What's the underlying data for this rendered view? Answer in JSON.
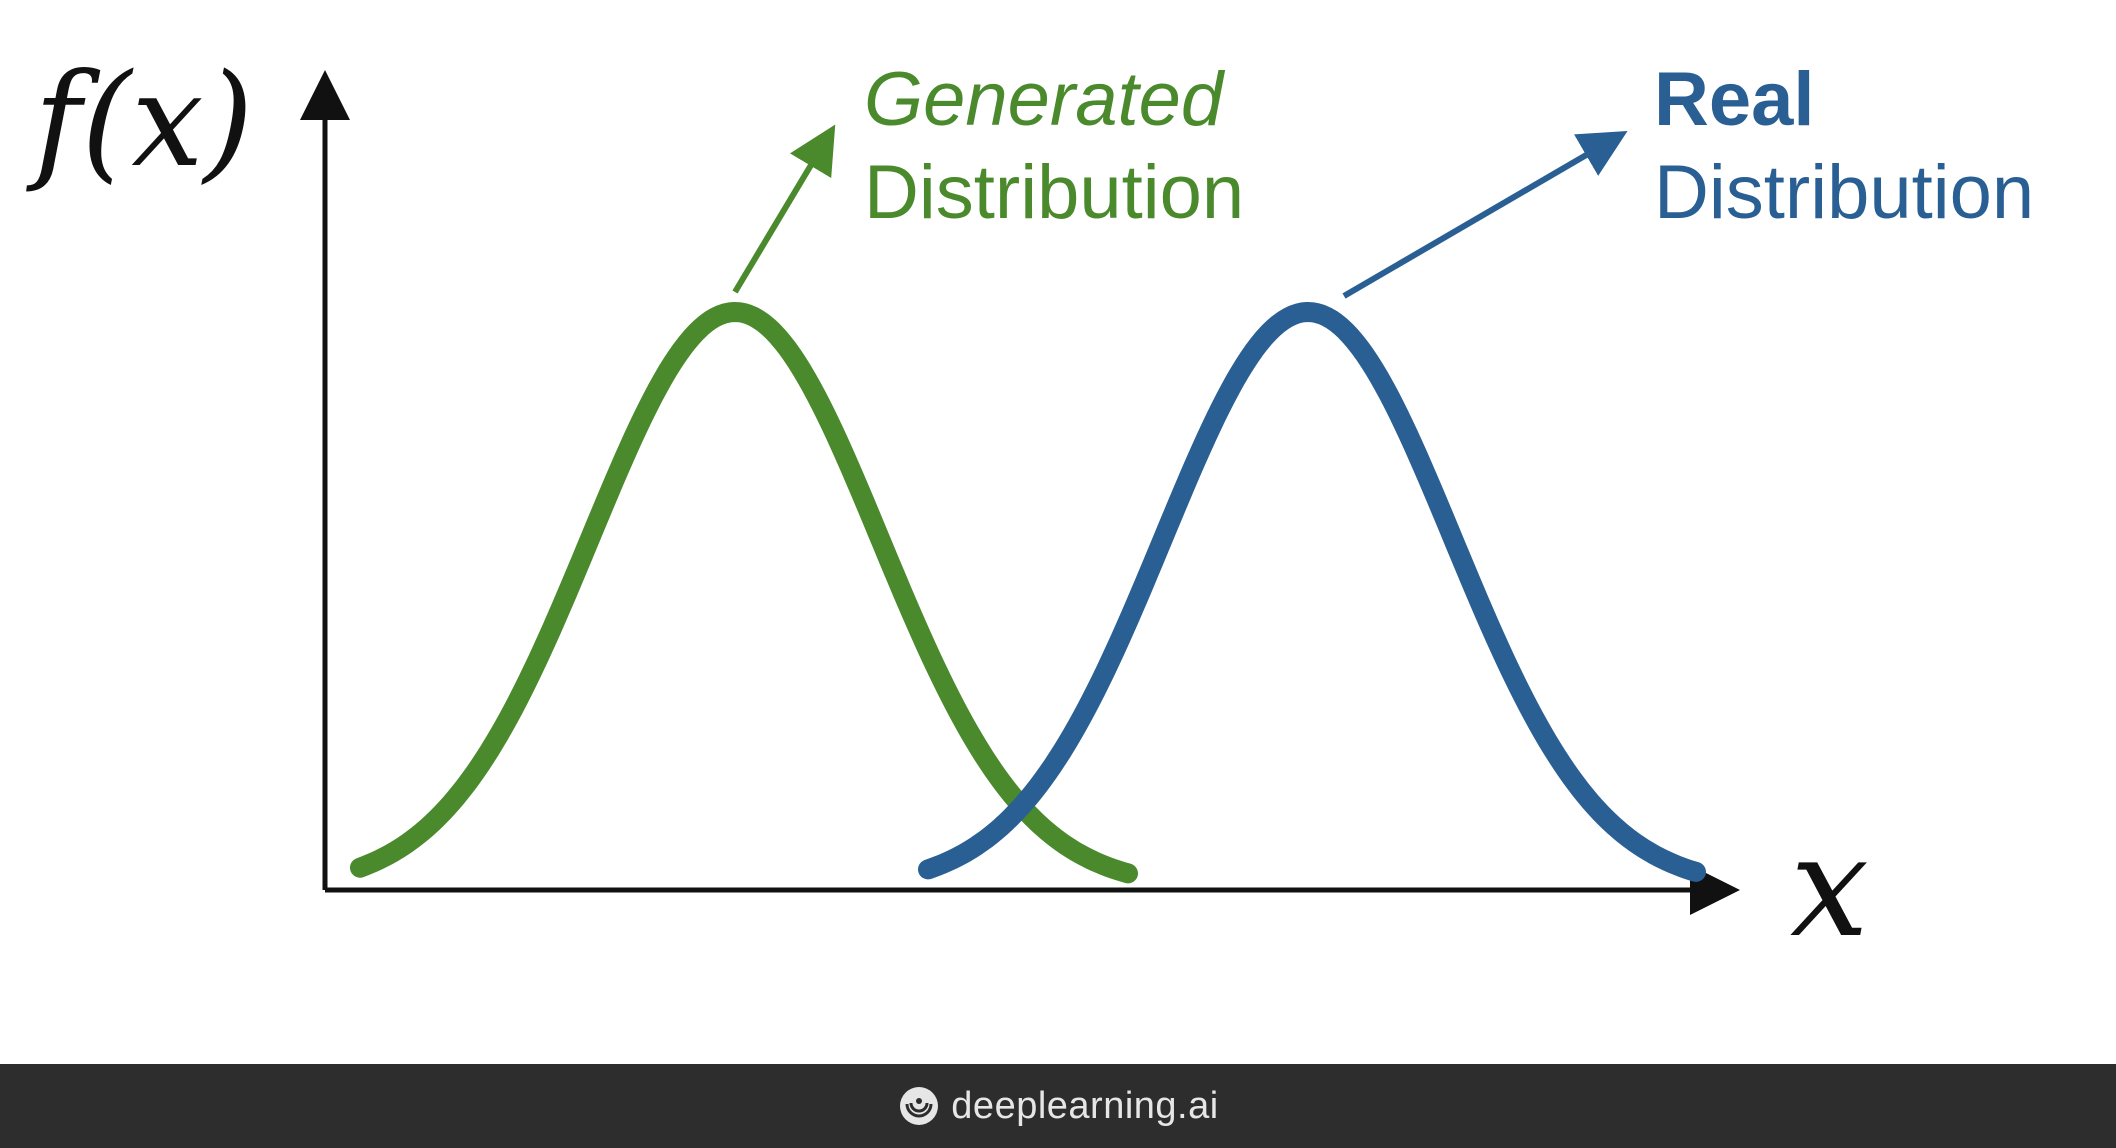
{
  "y_axis_label": "f(x)",
  "x_axis_label": "x",
  "generated": {
    "line1": "Generated",
    "line2": "Distribution",
    "color": "#4a8a2c"
  },
  "real": {
    "line1": "Real",
    "line2": "Distribution",
    "color": "#2a5f94"
  },
  "footer": {
    "brand": "deeplearning.ai",
    "logo_icon": "deeplearning-logo-icon",
    "background": "#2d2d2d"
  }
}
